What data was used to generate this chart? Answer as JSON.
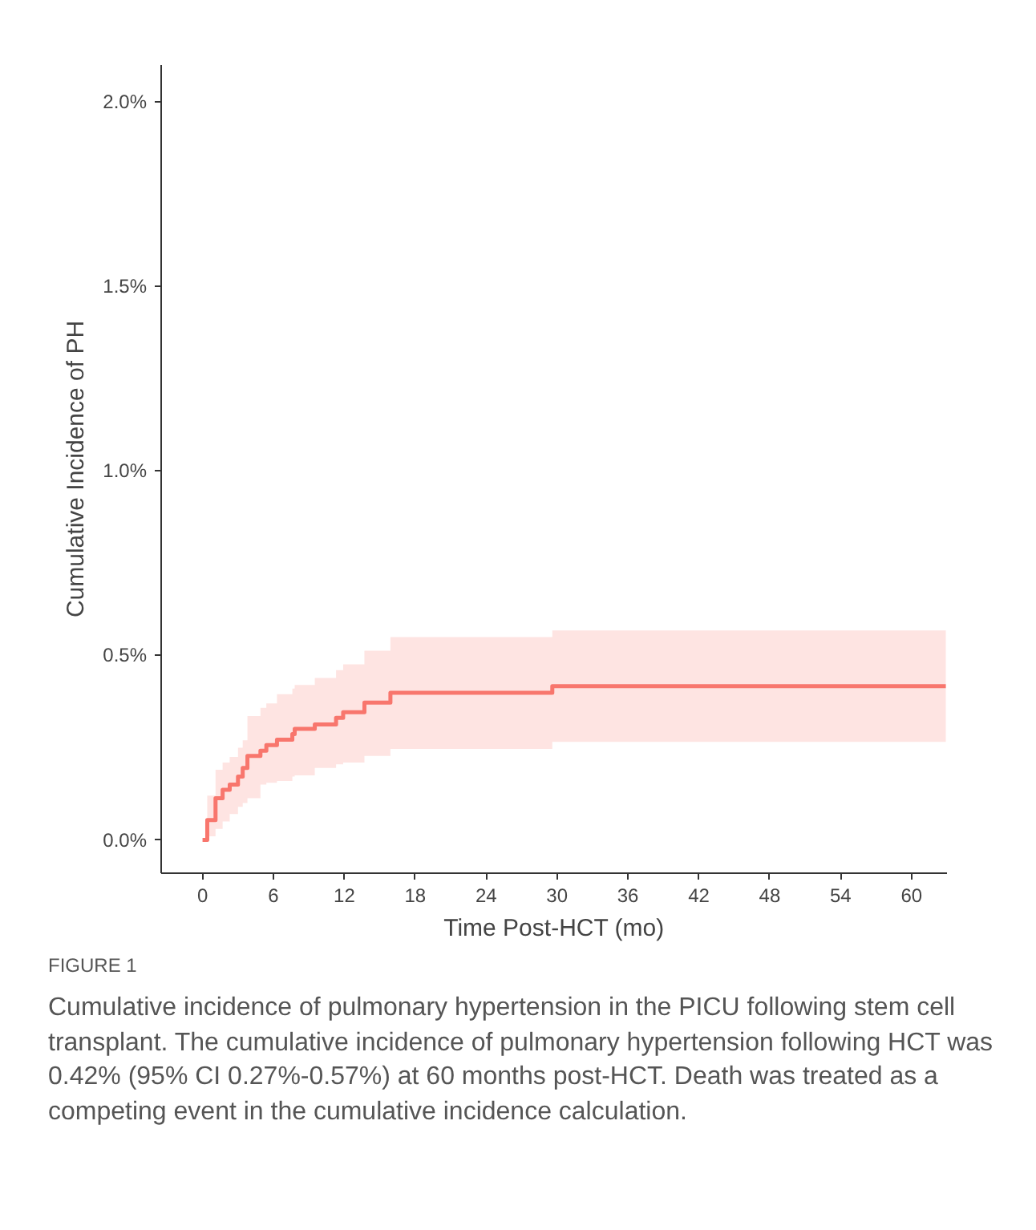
{
  "chart_data": {
    "type": "step",
    "xlabel": "Time Post-HCT (mo)",
    "ylabel": "Cumulative Incidence of PH",
    "annotations": [
      "FIGURE 1",
      "Cumulative incidence of pulmonary hypertension in the PICU following stem cell transplant. The cumulative incidence of pulmonary hypertension following HCT was 0.42% (95% CI 0.27%-0.57%) at 60 months post-HCT. Death was treated as a competing event in the cumulative incidence calculation."
    ],
    "x": [
      0,
      0.4,
      1.1,
      1.7,
      2.3,
      3.0,
      3.4,
      3.8,
      4.9,
      5.4,
      6.3,
      7.6,
      7.8,
      9.5,
      11.3,
      11.9,
      13.7,
      15.9,
      29.6,
      62.9
    ],
    "series": [
      {
        "color": "#f8766d",
        "values": [
          0,
          0.054,
          0.113,
          0.136,
          0.15,
          0.172,
          0.195,
          0.228,
          0.242,
          0.257,
          0.272,
          0.287,
          0.301,
          0.313,
          0.331,
          0.346,
          0.372,
          0.399,
          0.417,
          0.417
        ],
        "lower": [
          0,
          0.01,
          0.03,
          0.05,
          0.07,
          0.09,
          0.1,
          0.113,
          0.15,
          0.155,
          0.16,
          0.172,
          0.175,
          0.195,
          0.205,
          0.21,
          0.228,
          0.247,
          0.266,
          0.266
        ],
        "upper": [
          0,
          0.12,
          0.19,
          0.21,
          0.225,
          0.25,
          0.27,
          0.336,
          0.358,
          0.37,
          0.395,
          0.41,
          0.42,
          0.439,
          0.46,
          0.476,
          0.513,
          0.55,
          0.568,
          0.568
        ]
      }
    ],
    "xlim": [
      -3.5,
      63
    ],
    "xticks": [
      0,
      6,
      12,
      18,
      24,
      30,
      36,
      42,
      48,
      54,
      60
    ],
    "ylim": [
      -0.09,
      2.1
    ],
    "yticks": [
      {
        "value": 0,
        "label": "0.0%"
      },
      {
        "value": 0.5,
        "label": "0.5%"
      },
      {
        "value": 1.0,
        "label": "1.0%"
      },
      {
        "value": 1.5,
        "label": "1.5%"
      },
      {
        "value": 2.0,
        "label": "2.0%"
      }
    ],
    "grid": false
  }
}
